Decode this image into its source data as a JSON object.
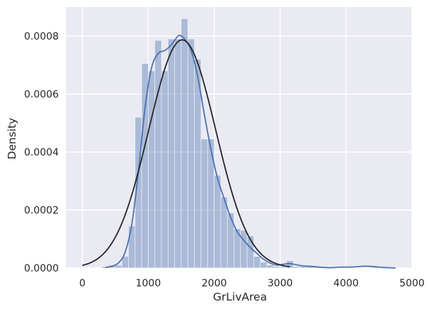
{
  "chart_data": {
    "type": "bar",
    "subtype": "histogram-with-density",
    "xlabel": "GrLivArea",
    "ylabel": "Density",
    "xlim": [
      -250,
      5000
    ],
    "ylim": [
      0,
      0.0009
    ],
    "x_ticks": [
      {
        "value": 0,
        "label": "0"
      },
      {
        "value": 1000,
        "label": "1000"
      },
      {
        "value": 2000,
        "label": "2000"
      },
      {
        "value": 3000,
        "label": "3000"
      },
      {
        "value": 4000,
        "label": "4000"
      },
      {
        "value": 5000,
        "label": "5000"
      }
    ],
    "y_ticks": [
      {
        "value": 0,
        "label": "0.0000"
      },
      {
        "value": 0.0002,
        "label": "0.0002"
      },
      {
        "value": 0.0004,
        "label": "0.0004"
      },
      {
        "value": 0.0006,
        "label": "0.0006"
      },
      {
        "value": 0.0008,
        "label": "0.0008"
      }
    ],
    "grid": true,
    "background_color": "#eaeaf2",
    "histogram": {
      "color": "#4c72b0",
      "bin_width": 100,
      "bins_start": [
        300,
        400,
        500,
        600,
        700,
        800,
        900,
        1000,
        1100,
        1200,
        1300,
        1400,
        1500,
        1600,
        1700,
        1800,
        1900,
        2000,
        2100,
        2200,
        2300,
        2400,
        2500,
        2600,
        2700,
        2800,
        2900,
        3000,
        3100,
        3200,
        3300,
        3400,
        3500,
        3600,
        3700,
        3800,
        3900,
        4000,
        4100,
        4200,
        4300,
        4400,
        4500,
        4600
      ],
      "density": [
        5e-06,
        1e-05,
        1e-05,
        4e-05,
        0.000145,
        0.00052,
        0.000705,
        0.00068,
        0.000785,
        0.00068,
        0.00079,
        0.00079,
        0.00086,
        0.00079,
        0.00072,
        0.000445,
        0.000445,
        0.00032,
        0.000245,
        0.00019,
        0.000135,
        0.00013,
        0.00011,
        4e-05,
        2e-05,
        1e-05,
        5e-06,
        5e-06,
        2.5e-05,
        5e-06,
        5e-06,
        5e-06,
        5e-06,
        5e-06,
        0.0,
        0.0,
        0.0,
        0.0,
        0.0,
        0.0,
        0.0,
        5e-06,
        0.0,
        0.0
      ]
    },
    "kde": {
      "color": "#4c72b0",
      "x": [
        350,
        450,
        550,
        650,
        750,
        850,
        950,
        1050,
        1150,
        1250,
        1350,
        1450,
        1500,
        1550,
        1650,
        1750,
        1850,
        1950,
        2050,
        2150,
        2250,
        2350,
        2450,
        2550,
        2650,
        2750,
        2850,
        2950,
        3050,
        3150,
        3250,
        3350,
        3450,
        3550,
        3650,
        3750,
        3850,
        3950,
        4050,
        4150,
        4250,
        4350,
        4450,
        4550,
        4650,
        4750
      ],
      "y": [
        2e-06,
        6e-06,
        1.8e-05,
        5.5e-05,
        0.00015,
        0.00033,
        0.00055,
        0.00069,
        0.00074,
        0.00075,
        0.00077,
        0.0008,
        0.0008,
        0.00079,
        0.00075,
        0.00066,
        0.00053,
        0.00041,
        0.00031,
        0.00024,
        0.000175,
        0.000125,
        9.5e-05,
        7e-05,
        5e-05,
        3e-05,
        1.7e-05,
        1e-05,
        1.3e-05,
        1.5e-05,
        1.1e-05,
        7e-06,
        6e-06,
        4e-06,
        2e-06,
        1e-06,
        2e-06,
        3e-06,
        3e-06,
        4e-06,
        6e-06,
        6e-06,
        4e-06,
        2e-06,
        1e-06,
        0.0
      ]
    },
    "normal_fit": {
      "color": "#262626",
      "mean": 1515,
      "std": 507
    }
  }
}
